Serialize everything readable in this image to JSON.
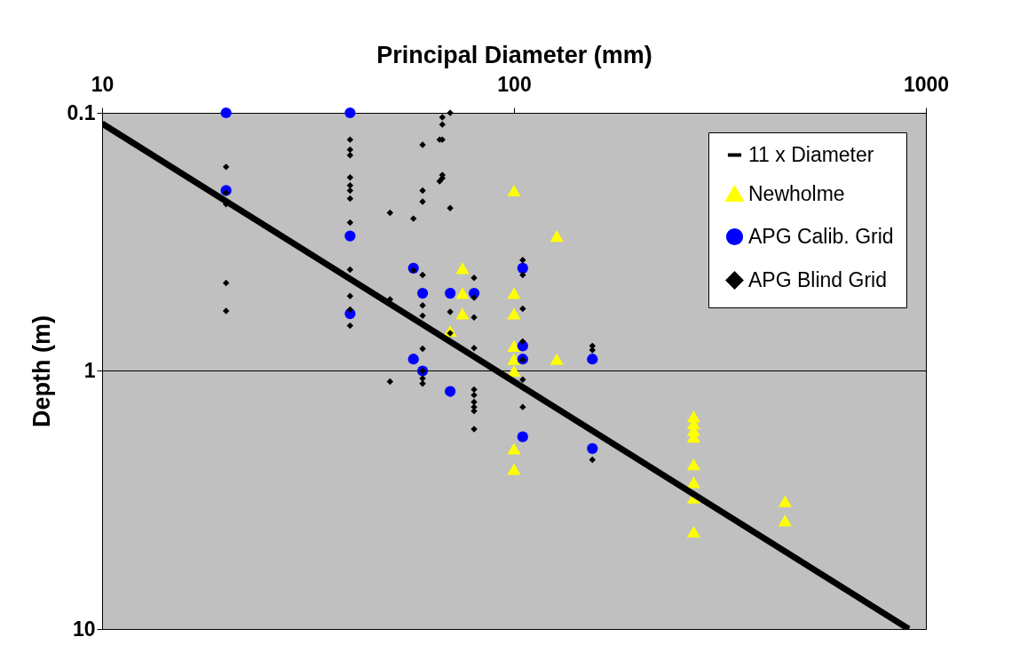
{
  "chart_data": {
    "type": "scatter",
    "xlabel": "Principal Diameter (mm)",
    "ylabel": "Depth (m)",
    "log": "xy",
    "xlim": [
      10,
      1000
    ],
    "xticks": [
      10,
      100,
      1000
    ],
    "ylim": [
      10,
      0.1
    ],
    "yticks": [
      0.1,
      1,
      10
    ],
    "grid": "y",
    "legend": "top right",
    "series": [
      {
        "name": "11 x Diameter",
        "type": "line",
        "color": "#000000",
        "line_style": "solid",
        "x": [
          10,
          909.09
        ],
        "values": [
          0.11,
          10
        ]
      },
      {
        "name": "Newholme",
        "color": "#ffff00",
        "marker": "triangle",
        "x": [
          100,
          127,
          75,
          75,
          100,
          75,
          100,
          70,
          100,
          100,
          127,
          100,
          100,
          100,
          273,
          273,
          273,
          273,
          273,
          273,
          273,
          273,
          455,
          455
        ],
        "values": [
          0.2,
          0.3,
          0.4,
          0.5,
          0.5,
          0.6,
          0.6,
          0.7,
          0.8,
          0.9,
          0.9,
          1.0,
          2.0,
          2.4,
          1.5,
          1.6,
          1.7,
          1.8,
          2.3,
          2.7,
          3.1,
          4.2,
          3.2,
          3.8
        ]
      },
      {
        "name": "APG Calib. Grid",
        "color": "#0000ff",
        "marker": "circle",
        "x": [
          20,
          20,
          40,
          40,
          40,
          57,
          60,
          70,
          80,
          105,
          105,
          105,
          155,
          57,
          60,
          70,
          105,
          155
        ],
        "values": [
          0.1,
          0.2,
          0.1,
          0.3,
          0.6,
          0.4,
          0.5,
          0.5,
          0.5,
          0.4,
          0.8,
          0.9,
          0.9,
          0.9,
          1.0,
          1.2,
          1.8,
          2.0
        ]
      },
      {
        "name": "APG Blind Grid",
        "color": "#000000",
        "marker": "diamond",
        "x": [
          20,
          20,
          20,
          20,
          20,
          40,
          40,
          40,
          40,
          40,
          40,
          40,
          40,
          40,
          40,
          40,
          40,
          50,
          50,
          50,
          57,
          57,
          60,
          60,
          60,
          60,
          60,
          60,
          60,
          60,
          60,
          60,
          66,
          66,
          67,
          67,
          67,
          67,
          67,
          70,
          70,
          70,
          70,
          80,
          80,
          80,
          80,
          80,
          80,
          80,
          80,
          80,
          80,
          105,
          105,
          105,
          105,
          105,
          105,
          105,
          155,
          155,
          155
        ],
        "values": [
          0.162,
          0.204,
          0.226,
          0.456,
          0.586,
          0.127,
          0.139,
          0.146,
          0.178,
          0.191,
          0.2,
          0.215,
          0.266,
          0.405,
          0.513,
          0.579,
          0.668,
          0.244,
          0.528,
          1.1,
          0.257,
          0.408,
          0.133,
          0.2,
          0.221,
          0.425,
          0.557,
          0.611,
          0.82,
          1.0,
          1.07,
          1.12,
          0.127,
          0.184,
          0.104,
          0.111,
          0.127,
          0.174,
          0.179,
          0.1,
          0.234,
          0.59,
          0.714,
          0.436,
          0.52,
          0.62,
          0.815,
          1.18,
          1.24,
          1.32,
          1.38,
          1.43,
          1.68,
          0.372,
          0.425,
          0.574,
          0.769,
          0.908,
          1.08,
          1.38,
          0.8,
          0.83,
          2.21
        ]
      }
    ]
  }
}
